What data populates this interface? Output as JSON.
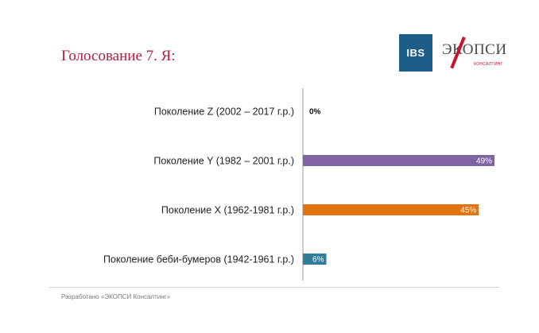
{
  "slide": {
    "title": "Голосование 7. Я:",
    "footer": "Разработано «ЭКОПСИ Консалтинг»"
  },
  "logos": {
    "ibs_text": "IBS",
    "ecopsy_text": "ЭКОПСИ",
    "ecopsy_sub": "КОНСАЛТИНГ"
  },
  "colors": {
    "title": "#b0203f",
    "axis": "#9a9a9a"
  },
  "chart_data": {
    "type": "bar",
    "orientation": "horizontal",
    "categories": [
      "Поколение Z (2002 – 2017 г.р.)",
      "Поколение Y (1982 – 2001 г.р.)",
      "Поколение X (1962-1981 г.р.)",
      "Поколение беби-бумеров (1942-1961 г.р.)"
    ],
    "values": [
      0,
      49,
      45,
      6
    ],
    "labels": [
      "0%",
      "49%",
      "45%",
      "6%"
    ],
    "colors": [
      "#2e7d9a",
      "#7f63a3",
      "#e2740f",
      "#2e7d9a"
    ],
    "xlim": [
      0,
      49
    ],
    "grid": false,
    "legend": "none"
  }
}
